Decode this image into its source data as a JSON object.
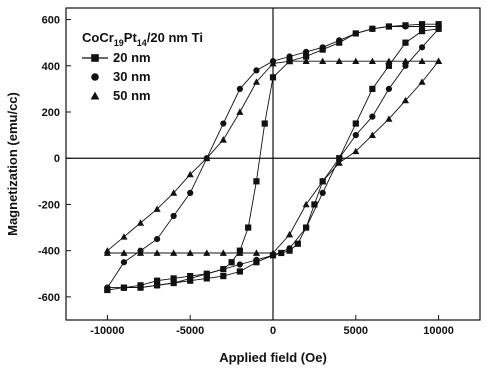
{
  "chart_data": {
    "type": "scatter",
    "title": "",
    "xlabel": "Applied field (Oe)",
    "ylabel": "Magnetization (emu/cc)",
    "xlim": [
      -12500,
      12500
    ],
    "ylim": [
      -700,
      650
    ],
    "x_ticks": [
      -10000,
      -5000,
      0,
      5000,
      10000
    ],
    "x_tick_labels": [
      "-10000",
      "-5000",
      "0",
      "5000",
      "10000"
    ],
    "y_ticks": [
      -600,
      -400,
      -200,
      0,
      200,
      400,
      600
    ],
    "y_tick_labels": [
      "-600",
      "-400",
      "-200",
      "0",
      "200",
      "400",
      "600"
    ],
    "zero_lines": true,
    "grid": false,
    "legend": {
      "position": "top-left",
      "heading": {
        "base": "CoCr",
        "sub1": "19",
        "mid": "Pt",
        "sub2": "14",
        "tail": "/20 nm Ti"
      }
    },
    "series": [
      {
        "name": "20 nm",
        "marker": "square",
        "color": "#111111",
        "x": [
          -10000,
          -9000,
          -8000,
          -7000,
          -6000,
          -5000,
          -4000,
          -3000,
          -2500,
          -2000,
          -1500,
          -1000,
          -500,
          0,
          1000,
          2000,
          3000,
          4000,
          5000,
          6000,
          7000,
          8000,
          9000,
          10000,
          10000,
          9000,
          8000,
          7000,
          6000,
          5000,
          4000,
          3000,
          2500,
          2000,
          1500,
          1000,
          500,
          0,
          -1000,
          -2000,
          -3000,
          -4000,
          -5000,
          -6000,
          -7000,
          -8000,
          -9000,
          -10000
        ],
        "y": [
          -570,
          -560,
          -550,
          -530,
          -520,
          -510,
          -500,
          -480,
          -450,
          -400,
          -300,
          -100,
          150,
          350,
          420,
          440,
          470,
          500,
          540,
          560,
          570,
          575,
          580,
          580,
          560,
          550,
          500,
          400,
          300,
          150,
          0,
          -100,
          -200,
          -300,
          -370,
          -400,
          -410,
          -420,
          -450,
          -490,
          -510,
          -520,
          -530,
          -540,
          -550,
          -560,
          -560,
          -570
        ]
      },
      {
        "name": "30 nm",
        "marker": "circle",
        "color": "#111111",
        "x": [
          -10000,
          -9000,
          -8000,
          -7000,
          -6000,
          -5000,
          -4000,
          -3000,
          -2000,
          -1000,
          0,
          1000,
          2000,
          3000,
          4000,
          5000,
          6000,
          7000,
          8000,
          9000,
          10000,
          10000,
          9000,
          8000,
          7000,
          6000,
          5000,
          4000,
          3000,
          2000,
          1000,
          0,
          -1000,
          -2000,
          -3000,
          -4000,
          -5000,
          -6000,
          -7000,
          -8000,
          -9000,
          -10000
        ],
        "y": [
          -560,
          -450,
          -400,
          -350,
          -250,
          -150,
          0,
          150,
          300,
          380,
          420,
          440,
          460,
          480,
          510,
          540,
          560,
          570,
          570,
          570,
          570,
          560,
          480,
          400,
          300,
          180,
          100,
          0,
          -150,
          -300,
          -390,
          -420,
          -440,
          -460,
          -480,
          -500,
          -520,
          -540,
          -550,
          -560,
          -560,
          -560
        ]
      },
      {
        "name": "50 nm",
        "marker": "triangle",
        "color": "#111111",
        "x": [
          -10000,
          -9000,
          -8000,
          -7000,
          -6000,
          -5000,
          -4000,
          -3000,
          -2000,
          -1000,
          0,
          1000,
          2000,
          3000,
          4000,
          5000,
          6000,
          7000,
          8000,
          9000,
          10000,
          10000,
          9000,
          8000,
          7000,
          6000,
          5000,
          4000,
          3000,
          2000,
          1000,
          0,
          -1000,
          -2000,
          -3000,
          -4000,
          -5000,
          -6000,
          -7000,
          -8000,
          -9000,
          -10000
        ],
        "y": [
          -400,
          -340,
          -280,
          -220,
          -150,
          -70,
          0,
          80,
          200,
          330,
          410,
          420,
          420,
          420,
          420,
          420,
          420,
          420,
          420,
          420,
          420,
          420,
          330,
          250,
          170,
          100,
          30,
          -20,
          -100,
          -200,
          -330,
          -410,
          -410,
          -410,
          -410,
          -410,
          -410,
          -410,
          -410,
          -410,
          -410,
          -410
        ]
      }
    ]
  }
}
